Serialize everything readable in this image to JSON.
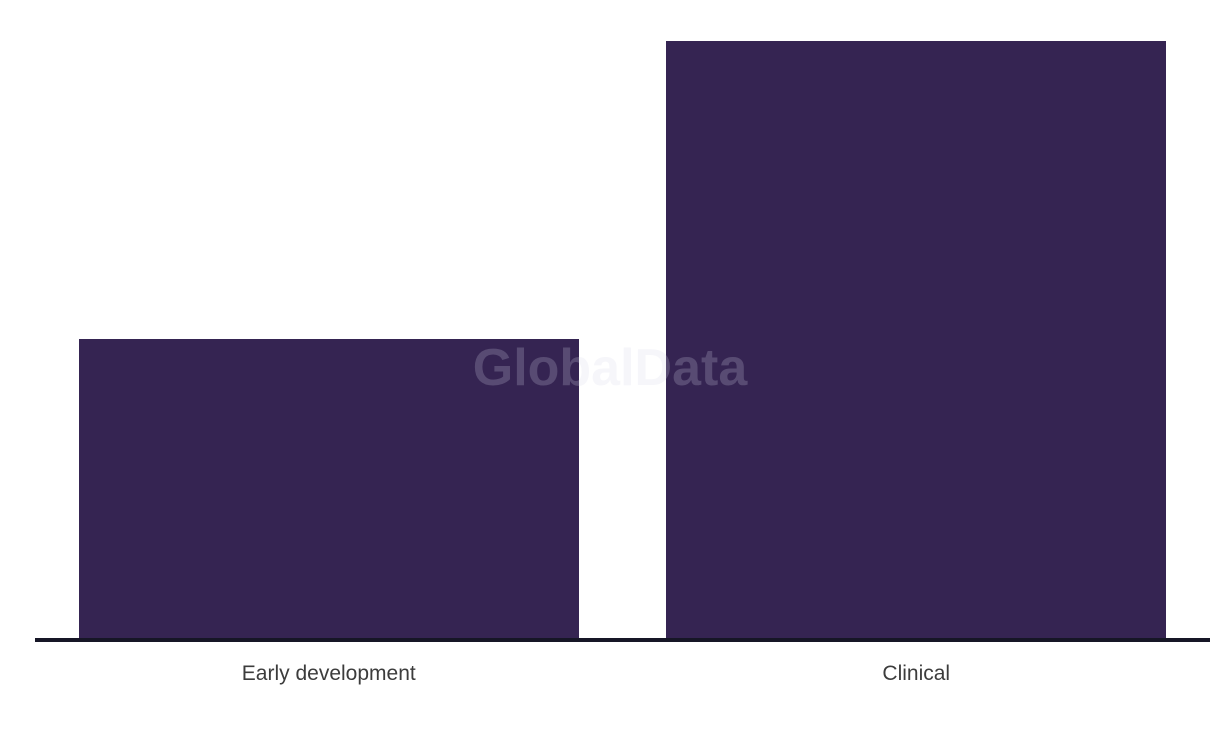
{
  "chart_data": {
    "type": "bar",
    "categories": [
      "Early development",
      "Clinical"
    ],
    "values": [
      50,
      100
    ],
    "title": "",
    "xlabel": "",
    "ylabel": "",
    "ylim": [
      0,
      100
    ],
    "y_axis_visible": false,
    "grid": false,
    "legend": false,
    "colors": {
      "bar": "#352452",
      "axis_line": "#161626",
      "tick_label": "#3c3c3c",
      "watermark": "rgba(215,215,230,0.22)"
    }
  },
  "watermark": {
    "text": "GlobalData"
  }
}
